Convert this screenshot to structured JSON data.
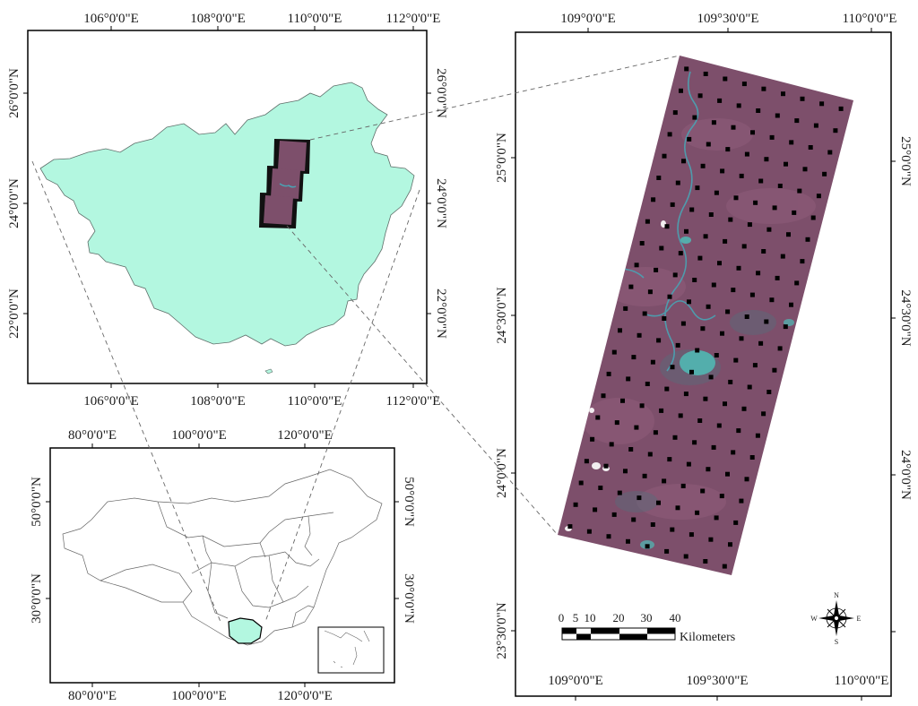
{
  "colors": {
    "province_fill": "#b3f7e0",
    "frame": "#000000",
    "image_base": "#7d4f6b",
    "water": "#4aa3b4",
    "sample_point": "#000000"
  },
  "top_left": {
    "top_ticks": [
      "106°0'0\"E",
      "108°0'0\"E",
      "110°0'0\"E",
      "112°0'0\"E"
    ],
    "bottom_ticks": [
      "106°0'0\"E",
      "108°0'0\"E",
      "110°0'0\"E",
      "112°0'0\"E"
    ],
    "left_ticks": [
      "26°0'0\"N",
      "24°0'0\"N",
      "22°0'0\"N"
    ],
    "right_ticks": [
      "26°0'0\"N",
      "24°0'0\"N",
      "22°0'0\"N"
    ]
  },
  "bottom_left": {
    "top_ticks": [
      "80°0'0\"E",
      "100°0'0\"E",
      "120°0'0\"E"
    ],
    "bottom_ticks": [
      "80°0'0\"E",
      "100°0'0\"E",
      "120°0'0\"E"
    ],
    "left_ticks": [
      "50°0'0\"N",
      "30°0'0\"N"
    ],
    "right_ticks": [
      "50°0'0\"N",
      "30°0'0\"N"
    ]
  },
  "right": {
    "top_ticks": [
      "109°0'0\"E",
      "109°30'0\"E",
      "110°0'0\"E"
    ],
    "bottom_ticks": [
      "109°0'0\"E",
      "109°30'0\"E",
      "110°0'0\"E"
    ],
    "left_ticks": [
      "25°0'0\"N",
      "24°30'0\"N",
      "24°0'0\"N",
      "23°30'0\"N"
    ],
    "right_ticks": [
      "25°0'0\"N",
      "24°30'0\"N",
      "24°0'0\"N"
    ]
  },
  "scale_bar": {
    "ticks": [
      "0",
      "5",
      "10",
      "20",
      "30",
      "40"
    ],
    "unit": "Kilometers"
  },
  "compass": {
    "n": "N",
    "s": "S",
    "e": "E",
    "w": "W"
  }
}
